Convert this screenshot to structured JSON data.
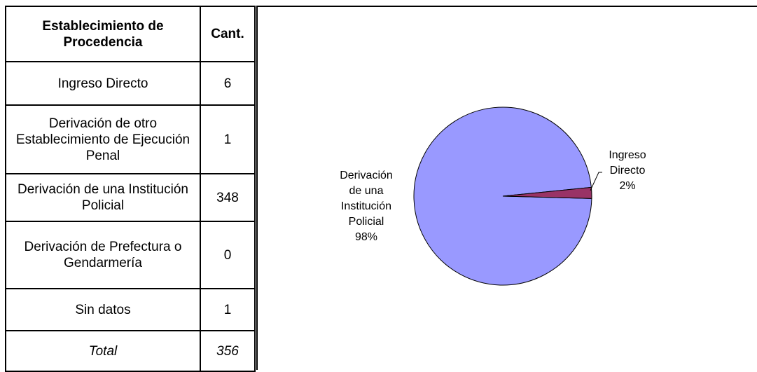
{
  "table": {
    "headers": [
      "Establecimiento de Procedencia",
      "Cant."
    ],
    "rows": [
      {
        "label": "Ingreso Directo",
        "value": "6"
      },
      {
        "label": "Derivación de otro Establecimiento de Ejecución Penal",
        "value": "1"
      },
      {
        "label": "Derivación de una Institución Policial",
        "value": "348"
      },
      {
        "label": "Derivación de Prefectura o Gendarmería",
        "value": "0"
      },
      {
        "label": "Sin datos",
        "value": "1"
      }
    ],
    "total": {
      "label": "Total",
      "value": "356"
    }
  },
  "chart_data": {
    "type": "pie",
    "slices": [
      {
        "label": "Derivación de una Institución Policial",
        "percent_label": "98%",
        "value": 98,
        "color": "#9999ff"
      },
      {
        "label": "Ingreso Directo",
        "percent_label": "2%",
        "value": 2,
        "color": "#993366"
      }
    ],
    "legend": "none"
  }
}
